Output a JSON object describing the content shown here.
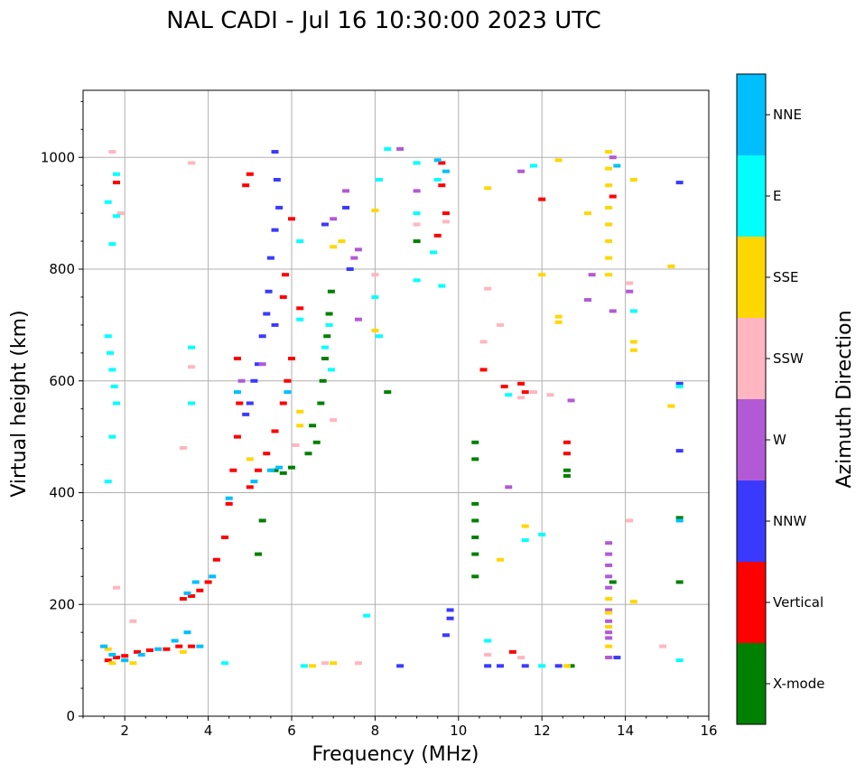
{
  "chart_data": {
    "type": "scatter",
    "title": "NAL CADI - Jul 16 10:30:00 2023 UTC",
    "xlabel": "Frequency (MHz)",
    "ylabel": "Virtual height (km)",
    "xlim": [
      1,
      16
    ],
    "ylim": [
      0,
      1120
    ],
    "xticks": [
      2,
      4,
      6,
      8,
      10,
      12,
      14,
      16
    ],
    "yticks": [
      0,
      200,
      400,
      600,
      800,
      1000
    ],
    "grid": true,
    "colorbar": {
      "label": "Azimuth Direction",
      "categories": [
        {
          "name": "X-mode",
          "color": "#008000"
        },
        {
          "name": "Vertical",
          "color": "#ff0000"
        },
        {
          "name": "NNW",
          "color": "#3a3aff"
        },
        {
          "name": "W",
          "color": "#b25ad6"
        },
        {
          "name": "SSW",
          "color": "#ffb6c1"
        },
        {
          "name": "SSE",
          "color": "#ffd700"
        },
        {
          "name": "E",
          "color": "#00ffff"
        },
        {
          "name": "NNE",
          "color": "#00bfff"
        }
      ]
    },
    "series": [
      {
        "name": "X-mode",
        "points": [
          [
            6.6,
            490
          ],
          [
            6.5,
            520
          ],
          [
            6.7,
            560
          ],
          [
            6.75,
            600
          ],
          [
            6.8,
            640
          ],
          [
            6.85,
            680
          ],
          [
            6.9,
            720
          ],
          [
            6.95,
            760
          ],
          [
            5.6,
            440
          ],
          [
            5.8,
            435
          ],
          [
            6.0,
            445
          ],
          [
            6.4,
            470
          ],
          [
            12.6,
            440
          ],
          [
            12.6,
            430
          ],
          [
            10.4,
            380
          ],
          [
            10.4,
            350
          ],
          [
            10.4,
            320
          ],
          [
            10.4,
            290
          ],
          [
            10.4,
            250
          ],
          [
            10.4,
            460
          ],
          [
            10.4,
            490
          ],
          [
            8.3,
            580
          ],
          [
            15.3,
            240
          ],
          [
            15.3,
            355
          ],
          [
            12.7,
            90
          ],
          [
            5.2,
            290
          ],
          [
            5.3,
            350
          ],
          [
            9.0,
            850
          ],
          [
            13.7,
            240
          ]
        ]
      },
      {
        "name": "Vertical",
        "points": [
          [
            1.6,
            100
          ],
          [
            1.8,
            105
          ],
          [
            2.0,
            108
          ],
          [
            2.3,
            115
          ],
          [
            2.6,
            118
          ],
          [
            3.0,
            120
          ],
          [
            3.3,
            125
          ],
          [
            3.6,
            125
          ],
          [
            3.4,
            210
          ],
          [
            3.6,
            215
          ],
          [
            3.8,
            225
          ],
          [
            4.0,
            240
          ],
          [
            4.2,
            280
          ],
          [
            4.4,
            320
          ],
          [
            4.5,
            380
          ],
          [
            4.6,
            440
          ],
          [
            4.7,
            500
          ],
          [
            4.75,
            560
          ],
          [
            4.7,
            640
          ],
          [
            5.0,
            410
          ],
          [
            5.2,
            440
          ],
          [
            5.4,
            470
          ],
          [
            5.6,
            510
          ],
          [
            5.8,
            560
          ],
          [
            5.9,
            600
          ],
          [
            6.0,
            640
          ],
          [
            5.8,
            750
          ],
          [
            5.85,
            790
          ],
          [
            6.0,
            890
          ],
          [
            6.2,
            730
          ],
          [
            9.6,
            990
          ],
          [
            9.6,
            950
          ],
          [
            9.7,
            900
          ],
          [
            9.5,
            860
          ],
          [
            10.6,
            620
          ],
          [
            11.1,
            590
          ],
          [
            11.6,
            580
          ],
          [
            11.5,
            595
          ],
          [
            12.6,
            490
          ],
          [
            12.6,
            470
          ],
          [
            11.3,
            115
          ],
          [
            12.0,
            925
          ],
          [
            5.0,
            970
          ],
          [
            4.9,
            950
          ],
          [
            13.7,
            930
          ],
          [
            1.8,
            955
          ]
        ]
      },
      {
        "name": "NNW",
        "points": [
          [
            5.6,
            1010
          ],
          [
            5.65,
            960
          ],
          [
            5.7,
            910
          ],
          [
            5.6,
            870
          ],
          [
            5.5,
            820
          ],
          [
            5.45,
            760
          ],
          [
            5.4,
            720
          ],
          [
            5.3,
            680
          ],
          [
            5.2,
            630
          ],
          [
            5.1,
            600
          ],
          [
            5.0,
            560
          ],
          [
            4.9,
            540
          ],
          [
            5.6,
            700
          ],
          [
            9.8,
            190
          ],
          [
            9.8,
            175
          ],
          [
            9.7,
            145
          ],
          [
            10.7,
            90
          ],
          [
            11.0,
            90
          ],
          [
            11.6,
            90
          ],
          [
            12.4,
            90
          ],
          [
            8.6,
            90
          ],
          [
            15.3,
            475
          ],
          [
            15.3,
            955
          ],
          [
            15.3,
            595
          ],
          [
            13.8,
            105
          ],
          [
            7.3,
            910
          ],
          [
            6.8,
            880
          ],
          [
            7.4,
            800
          ]
        ]
      },
      {
        "name": "W",
        "points": [
          [
            13.6,
            310
          ],
          [
            13.6,
            290
          ],
          [
            13.6,
            270
          ],
          [
            13.6,
            250
          ],
          [
            13.6,
            230
          ],
          [
            13.6,
            190
          ],
          [
            13.6,
            170
          ],
          [
            13.6,
            150
          ],
          [
            13.6,
            140
          ],
          [
            13.6,
            105
          ],
          [
            13.7,
            725
          ],
          [
            14.1,
            760
          ],
          [
            13.2,
            790
          ],
          [
            13.1,
            745
          ],
          [
            12.7,
            565
          ],
          [
            11.2,
            410
          ],
          [
            11.5,
            975
          ],
          [
            7.6,
            710
          ],
          [
            7.5,
            820
          ],
          [
            7.3,
            940
          ],
          [
            7.0,
            890
          ],
          [
            9.0,
            940
          ],
          [
            13.7,
            1000
          ],
          [
            4.8,
            600
          ],
          [
            5.3,
            630
          ],
          [
            7.6,
            835
          ],
          [
            8.6,
            1015
          ]
        ]
      },
      {
        "name": "SSW",
        "points": [
          [
            1.8,
            230
          ],
          [
            2.2,
            170
          ],
          [
            1.7,
            1010
          ],
          [
            1.9,
            900
          ],
          [
            3.6,
            990
          ],
          [
            3.6,
            625
          ],
          [
            3.4,
            480
          ],
          [
            6.1,
            485
          ],
          [
            7.0,
            530
          ],
          [
            11.0,
            700
          ],
          [
            10.7,
            765
          ],
          [
            10.6,
            670
          ],
          [
            11.5,
            570
          ],
          [
            11.8,
            580
          ],
          [
            12.2,
            575
          ],
          [
            14.1,
            350
          ],
          [
            14.1,
            775
          ],
          [
            14.9,
            125
          ],
          [
            7.6,
            95
          ],
          [
            6.8,
            95
          ],
          [
            10.7,
            110
          ],
          [
            11.5,
            105
          ],
          [
            9.0,
            880
          ],
          [
            9.7,
            885
          ],
          [
            8.0,
            790
          ]
        ]
      },
      {
        "name": "SSE",
        "points": [
          [
            1.6,
            120
          ],
          [
            1.7,
            95
          ],
          [
            2.0,
            100
          ],
          [
            2.2,
            95
          ],
          [
            3.4,
            115
          ],
          [
            6.2,
            520
          ],
          [
            6.2,
            545
          ],
          [
            5.0,
            460
          ],
          [
            13.6,
            1010
          ],
          [
            13.6,
            980
          ],
          [
            13.6,
            950
          ],
          [
            13.6,
            910
          ],
          [
            13.6,
            880
          ],
          [
            13.6,
            850
          ],
          [
            13.6,
            820
          ],
          [
            13.6,
            790
          ],
          [
            14.2,
            960
          ],
          [
            14.2,
            670
          ],
          [
            14.2,
            655
          ],
          [
            12.4,
            995
          ],
          [
            12.4,
            715
          ],
          [
            12.4,
            705
          ],
          [
            13.1,
            900
          ],
          [
            15.1,
            555
          ],
          [
            15.1,
            805
          ],
          [
            12.0,
            790
          ],
          [
            11.6,
            340
          ],
          [
            11.0,
            280
          ],
          [
            10.7,
            945
          ],
          [
            13.6,
            210
          ],
          [
            13.6,
            185
          ],
          [
            13.6,
            160
          ],
          [
            13.6,
            125
          ],
          [
            14.2,
            205
          ],
          [
            12.6,
            90
          ],
          [
            6.5,
            90
          ],
          [
            7.0,
            95
          ],
          [
            8.0,
            690
          ],
          [
            8.0,
            905
          ],
          [
            7.2,
            850
          ],
          [
            7.0,
            840
          ]
        ]
      },
      {
        "name": "E",
        "points": [
          [
            1.6,
            680
          ],
          [
            1.65,
            650
          ],
          [
            1.7,
            620
          ],
          [
            1.75,
            590
          ],
          [
            1.8,
            560
          ],
          [
            1.7,
            500
          ],
          [
            1.6,
            420
          ],
          [
            1.7,
            845
          ],
          [
            1.8,
            895
          ],
          [
            1.6,
            920
          ],
          [
            1.8,
            970
          ],
          [
            3.6,
            660
          ],
          [
            3.6,
            560
          ],
          [
            4.4,
            95
          ],
          [
            6.3,
            90
          ],
          [
            6.2,
            710
          ],
          [
            6.8,
            660
          ],
          [
            6.9,
            700
          ],
          [
            6.95,
            620
          ],
          [
            7.8,
            180
          ],
          [
            8.0,
            750
          ],
          [
            8.1,
            680
          ],
          [
            9.0,
            780
          ],
          [
            9.0,
            990
          ],
          [
            9.0,
            900
          ],
          [
            9.4,
            830
          ],
          [
            9.5,
            960
          ],
          [
            9.6,
            770
          ],
          [
            10.7,
            135
          ],
          [
            11.2,
            575
          ],
          [
            11.6,
            315
          ],
          [
            12.0,
            325
          ],
          [
            12.0,
            90
          ],
          [
            14.2,
            725
          ],
          [
            15.3,
            590
          ],
          [
            15.3,
            100
          ],
          [
            8.3,
            1015
          ],
          [
            8.1,
            960
          ],
          [
            11.8,
            985
          ],
          [
            6.2,
            850
          ]
        ]
      },
      {
        "name": "NNE",
        "points": [
          [
            1.5,
            125
          ],
          [
            1.7,
            110
          ],
          [
            2.0,
            100
          ],
          [
            2.4,
            110
          ],
          [
            2.8,
            120
          ],
          [
            3.2,
            135
          ],
          [
            3.5,
            150
          ],
          [
            3.8,
            125
          ],
          [
            3.5,
            220
          ],
          [
            3.7,
            240
          ],
          [
            4.1,
            250
          ],
          [
            4.5,
            390
          ],
          [
            4.7,
            580
          ],
          [
            5.1,
            420
          ],
          [
            5.5,
            440
          ],
          [
            5.7,
            445
          ],
          [
            5.9,
            580
          ],
          [
            9.5,
            995
          ],
          [
            9.7,
            975
          ],
          [
            13.8,
            985
          ],
          [
            15.3,
            350
          ]
        ]
      }
    ]
  }
}
